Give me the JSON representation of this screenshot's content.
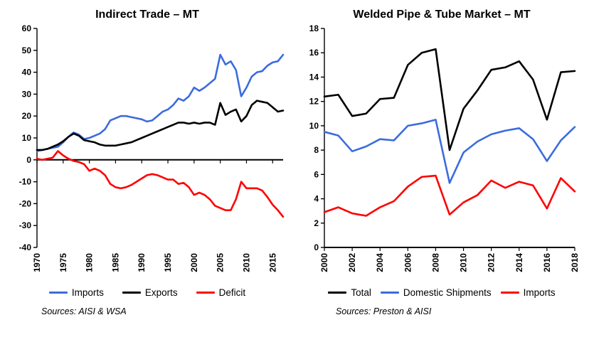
{
  "page": {
    "background": "#FFFFFF"
  },
  "chart_data": [
    {
      "type": "line",
      "title": "Indirect Trade – MT",
      "sources": "Sources: AISI & WSA",
      "xlabel": "",
      "ylabel": "",
      "ylim": [
        -40,
        60
      ],
      "ystep": 10,
      "grid": false,
      "legend_position": "bottom",
      "x": [
        1970,
        1971,
        1972,
        1973,
        1974,
        1975,
        1976,
        1977,
        1978,
        1979,
        1980,
        1981,
        1982,
        1983,
        1984,
        1985,
        1986,
        1987,
        1988,
        1989,
        1990,
        1991,
        1992,
        1993,
        1994,
        1995,
        1996,
        1997,
        1998,
        1999,
        2000,
        2001,
        2002,
        2003,
        2004,
        2005,
        2006,
        2007,
        2008,
        2009,
        2010,
        2011,
        2012,
        2013,
        2014,
        2015,
        2016,
        2017
      ],
      "xticks": [
        1970,
        1975,
        1980,
        1985,
        1990,
        1995,
        2000,
        2005,
        2010,
        2015
      ],
      "series": [
        {
          "name": "Imports",
          "color": "#3B6CDE",
          "values": [
            4,
            4.5,
            5,
            5.5,
            6,
            8,
            10.5,
            12.5,
            11.5,
            9.5,
            10,
            11,
            12,
            14,
            18,
            19,
            20,
            20,
            19.5,
            19,
            18.5,
            17.5,
            18,
            20,
            22,
            23,
            25,
            28,
            27,
            29,
            33,
            31.5,
            33,
            35,
            37,
            48,
            43.5,
            45,
            41,
            29,
            33,
            38,
            40,
            40.5,
            43,
            44.5,
            45,
            48
          ]
        },
        {
          "name": "Exports",
          "color": "#000000",
          "values": [
            4.5,
            4.5,
            5,
            6,
            7,
            8.5,
            10.5,
            12,
            11,
            9,
            8.5,
            8,
            7,
            6.5,
            6.5,
            6.5,
            7,
            7.5,
            8,
            9,
            10,
            11,
            12,
            13,
            14,
            15,
            16,
            17,
            17,
            16.5,
            17,
            16.5,
            17,
            17,
            16,
            26,
            20.5,
            22,
            23,
            17.5,
            20,
            25,
            27,
            26.5,
            26,
            24,
            22,
            22.5
          ]
        },
        {
          "name": "Deficit",
          "color": "#FF0000",
          "values": [
            0.5,
            0,
            0.5,
            1,
            4,
            2,
            0.5,
            -0.5,
            -1,
            -2,
            -5,
            -4,
            -5,
            -7,
            -11,
            -12.5,
            -13,
            -12.5,
            -11.5,
            -10,
            -8.5,
            -7,
            -6.5,
            -7,
            -8,
            -9,
            -9,
            -11,
            -10.5,
            -12.5,
            -16,
            -15,
            -16,
            -18,
            -21,
            -22,
            -23,
            -23,
            -18,
            -10,
            -13,
            -13,
            -13,
            -14,
            -17,
            -20.5,
            -23,
            -26
          ]
        }
      ]
    },
    {
      "type": "line",
      "title": "Welded Pipe & Tube Market – MT",
      "sources": "Sources: Preston & AISI",
      "xlabel": "",
      "ylabel": "",
      "ylim": [
        0,
        18
      ],
      "ystep": 2,
      "grid": false,
      "legend_position": "bottom",
      "x": [
        2000,
        2001,
        2002,
        2003,
        2004,
        2005,
        2006,
        2007,
        2008,
        2009,
        2010,
        2011,
        2012,
        2013,
        2014,
        2015,
        2016,
        2017,
        2018
      ],
      "xticks": [
        2000,
        2002,
        2004,
        2006,
        2008,
        2010,
        2012,
        2014,
        2016,
        2018
      ],
      "series": [
        {
          "name": "Total",
          "color": "#000000",
          "values": [
            12.4,
            12.55,
            10.8,
            11.0,
            12.2,
            12.3,
            15.0,
            16.0,
            16.3,
            8.0,
            11.4,
            12.9,
            14.6,
            14.8,
            15.3,
            13.8,
            10.5,
            14.4,
            14.5
          ]
        },
        {
          "name": "Domestic Shipments",
          "color": "#3B6CDE",
          "values": [
            9.5,
            9.2,
            7.9,
            8.3,
            8.9,
            8.8,
            10.0,
            10.2,
            10.5,
            5.3,
            7.8,
            8.7,
            9.3,
            9.6,
            9.8,
            8.9,
            7.1,
            8.8,
            9.9
          ]
        },
        {
          "name": "Imports",
          "color": "#FF0000",
          "values": [
            2.9,
            3.3,
            2.8,
            2.6,
            3.3,
            3.8,
            5.0,
            5.8,
            5.9,
            2.7,
            3.7,
            4.3,
            5.5,
            4.9,
            5.4,
            5.1,
            3.2,
            5.7,
            4.6
          ]
        }
      ]
    }
  ]
}
